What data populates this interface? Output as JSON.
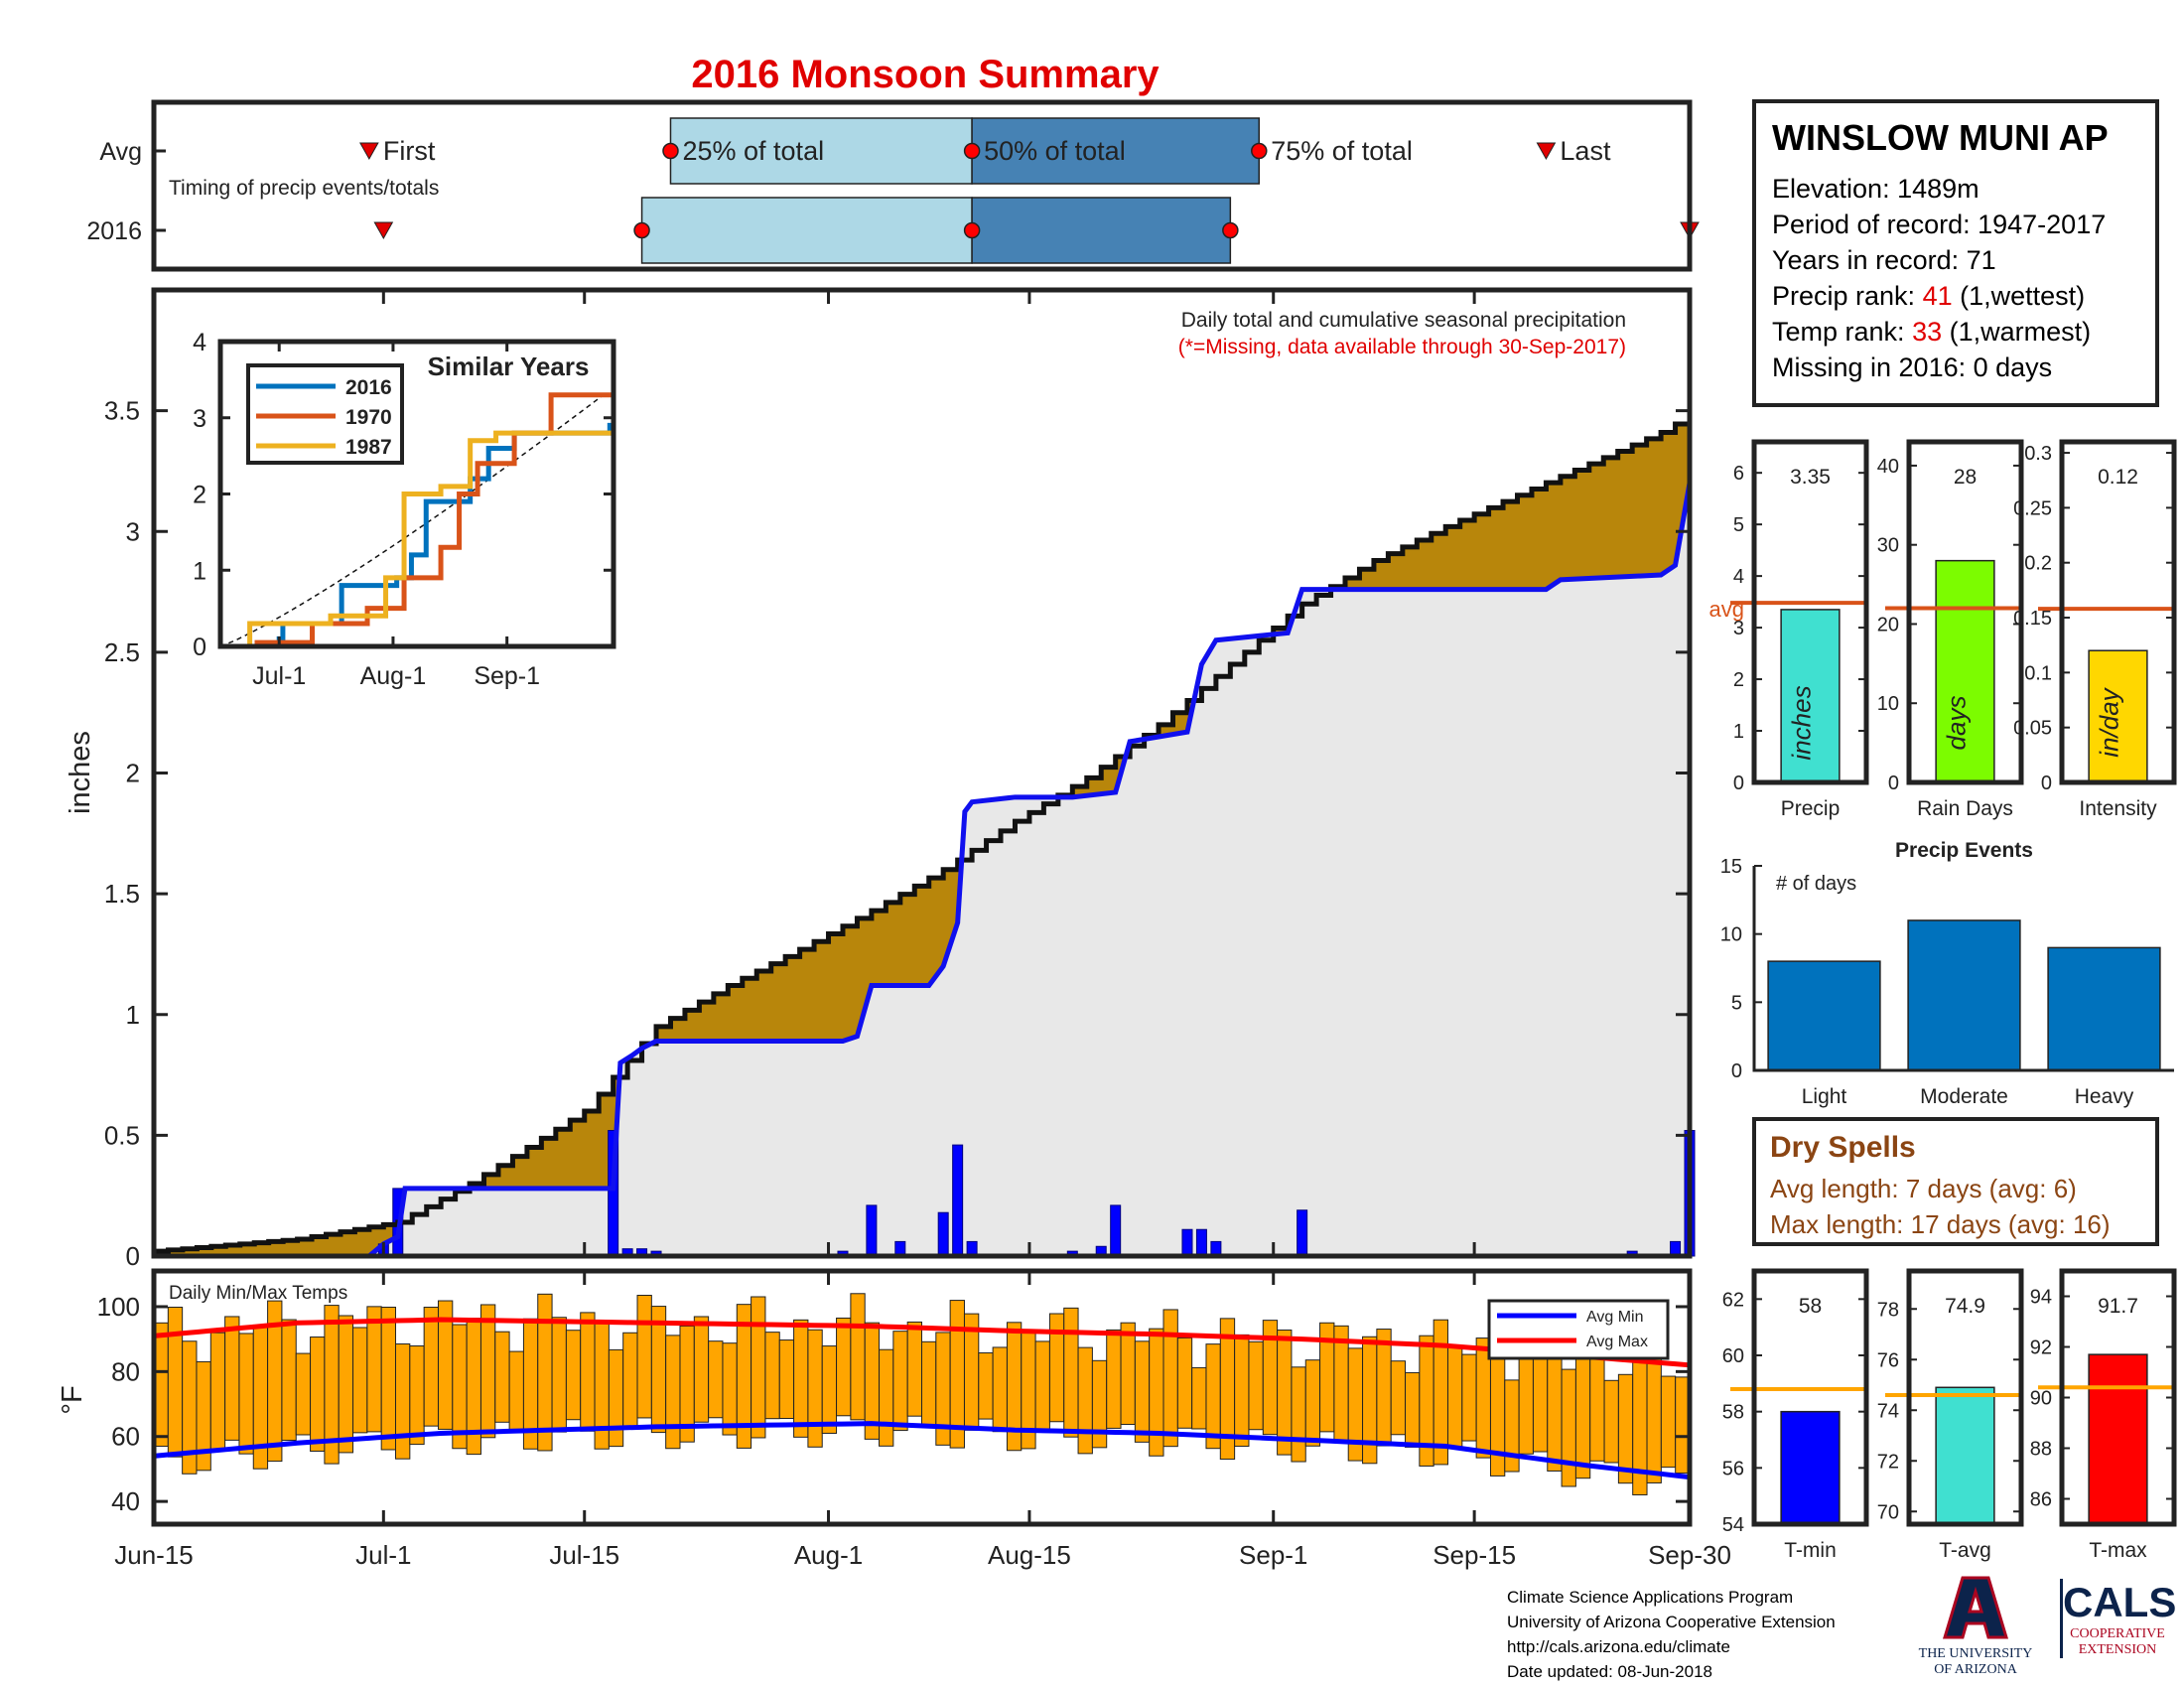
{
  "title": "2016 Monsoon Summary",
  "colors": {
    "title": "#e00000",
    "cumulative_fill": "#b8860b",
    "above_avg_fill": "#228b22",
    "avg_area": "#e8e8e8",
    "daily_bars": "#0000ff",
    "avg_line": "#1010ee",
    "temp_bars": "#ffa500",
    "avg_min_line": "#0000ff",
    "avg_max_line": "#ff0000",
    "light_box": "#add8e6",
    "dark_box": "#4682b4"
  },
  "station": {
    "name": "WINSLOW MUNI AP",
    "elevation_label": "Elevation: 1489m",
    "period_label": "Period of record: 1947-2017",
    "years_label": "Years in record: 71",
    "precip_rank_prefix": "Precip rank: ",
    "precip_rank_value": "41",
    "precip_rank_suffix": " (1,wettest)",
    "temp_rank_prefix": "Temp rank: ",
    "temp_rank_value": "33",
    "temp_rank_suffix": " (1,warmest)",
    "missing_label": "Missing in 2016: 0 days"
  },
  "timing": {
    "row_labels": [
      "Avg",
      "2016"
    ],
    "caption": "Timing of precip events/totals",
    "markers": [
      "First",
      "25% of total",
      "50% of total",
      "75% of total",
      "Last"
    ]
  },
  "dry_spells": {
    "title": "Dry Spells",
    "avg_line": "Avg length: 7 days (avg: 6)",
    "max_line": "Max length: 17 days (avg: 16)"
  },
  "footer": {
    "lines": [
      "Climate Science Applications Program",
      "University of Arizona Cooperative Extension",
      "http://cals.arizona.edu/climate",
      " Date updated: 08-Jun-2018"
    ],
    "ua_lines": [
      "THE UNIVERSITY",
      "OF ARIZONA"
    ],
    "cals_title": "CALS",
    "cals_lines": [
      "COOPERATIVE",
      "EXTENSION"
    ]
  },
  "chart_data": [
    {
      "id": "timing",
      "type": "bar",
      "x_range_days": [
        0,
        107
      ],
      "avg": {
        "first": 15,
        "p25": 36,
        "p50": 57,
        "p75": 77,
        "last": 97
      },
      "year_2016": {
        "first": 16,
        "p25": 34,
        "p50": 57,
        "p75": 75,
        "last": 107
      }
    },
    {
      "id": "main_precip",
      "type": "area",
      "ylabel": "inches",
      "annotation": "Daily total and cumulative seasonal precipitation",
      "annotation_missing": "(*=Missing, data available through 30-Sep-2017)",
      "ylim": [
        0,
        4
      ],
      "yticks": [
        0,
        0.5,
        1,
        1.5,
        2,
        2.5,
        3,
        3.5
      ],
      "x_dates": [
        "Jun-15",
        "Jul-1",
        "Jul-15",
        "Aug-1",
        "Aug-15",
        "Sep-1",
        "Sep-15",
        "Sep-30"
      ],
      "x_days": [
        0,
        16,
        30,
        47,
        61,
        78,
        92,
        107
      ],
      "avg_cumulative": [
        [
          0,
          0.02
        ],
        [
          10,
          0.07
        ],
        [
          17,
          0.14
        ],
        [
          22,
          0.3
        ],
        [
          30,
          0.6
        ],
        [
          35,
          0.95
        ],
        [
          40,
          1.12
        ],
        [
          45,
          1.27
        ],
        [
          50,
          1.43
        ],
        [
          55,
          1.6
        ],
        [
          60,
          1.8
        ],
        [
          65,
          1.98
        ],
        [
          70,
          2.2
        ],
        [
          75,
          2.45
        ],
        [
          80,
          2.7
        ],
        [
          85,
          2.88
        ],
        [
          90,
          3.02
        ],
        [
          95,
          3.15
        ],
        [
          100,
          3.28
        ],
        [
          105,
          3.41
        ],
        [
          107,
          3.48
        ]
      ],
      "year_2016_cumulative": [
        [
          0,
          0
        ],
        [
          15,
          0
        ],
        [
          16,
          0.05
        ],
        [
          17,
          0.08
        ],
        [
          17.5,
          0.28
        ],
        [
          24,
          0.28
        ],
        [
          32,
          0.28
        ],
        [
          32.5,
          0.8
        ],
        [
          33.3,
          0.83
        ],
        [
          34,
          0.86
        ],
        [
          35,
          0.89
        ],
        [
          48,
          0.89
        ],
        [
          49,
          0.91
        ],
        [
          50,
          1.12
        ],
        [
          54,
          1.12
        ],
        [
          55,
          1.2
        ],
        [
          56,
          1.38
        ],
        [
          56.5,
          1.84
        ],
        [
          57,
          1.88
        ],
        [
          60,
          1.9
        ],
        [
          64,
          1.9
        ],
        [
          67,
          1.92
        ],
        [
          68,
          2.13
        ],
        [
          72,
          2.17
        ],
        [
          73,
          2.45
        ],
        [
          74,
          2.55
        ],
        [
          79,
          2.58
        ],
        [
          80,
          2.76
        ],
        [
          97,
          2.76
        ],
        [
          98,
          2.8
        ],
        [
          105,
          2.82
        ],
        [
          106,
          2.86
        ],
        [
          107,
          3.2
        ],
        [
          107,
          3.35
        ]
      ],
      "daily": [
        [
          16,
          0.05
        ],
        [
          17,
          0.28
        ],
        [
          32,
          0.52
        ],
        [
          33,
          0.03
        ],
        [
          34,
          0.03
        ],
        [
          35,
          0.02
        ],
        [
          48,
          0.02
        ],
        [
          50,
          0.21
        ],
        [
          52,
          0.06
        ],
        [
          55,
          0.18
        ],
        [
          56,
          0.46
        ],
        [
          57,
          0.06
        ],
        [
          64,
          0.02
        ],
        [
          66,
          0.04
        ],
        [
          67,
          0.21
        ],
        [
          72,
          0.11
        ],
        [
          73,
          0.11
        ],
        [
          74,
          0.06
        ],
        [
          80,
          0.19
        ],
        [
          103,
          0.02
        ],
        [
          106,
          0.06
        ],
        [
          107,
          0.52
        ]
      ]
    },
    {
      "id": "similar_years",
      "type": "line",
      "title": "Similar Years",
      "ylim": [
        0,
        4
      ],
      "yticks": [
        0,
        1,
        2,
        3,
        4
      ],
      "x_ticks": [
        "Jul-1",
        "Aug-1",
        "Sep-1"
      ],
      "series": [
        {
          "name": "2016",
          "color": "#0072bd",
          "points": [
            [
              0,
              0
            ],
            [
              16,
              0.1
            ],
            [
              17,
              0.3
            ],
            [
              30,
              0.3
            ],
            [
              33,
              0.8
            ],
            [
              48,
              0.9
            ],
            [
              52,
              1.2
            ],
            [
              56,
              1.9
            ],
            [
              68,
              2.2
            ],
            [
              73,
              2.6
            ],
            [
              80,
              2.8
            ],
            [
              106,
              2.9
            ],
            [
              107,
              3.35
            ]
          ]
        },
        {
          "name": "1970",
          "color": "#d95319",
          "points": [
            [
              0,
              0
            ],
            [
              10,
              0.05
            ],
            [
              25,
              0.3
            ],
            [
              40,
              0.5
            ],
            [
              50,
              0.9
            ],
            [
              60,
              1.3
            ],
            [
              65,
              2.0
            ],
            [
              70,
              2.4
            ],
            [
              80,
              2.8
            ],
            [
              90,
              3.3
            ],
            [
              107,
              3.3
            ]
          ]
        },
        {
          "name": "1987",
          "color": "#edb120",
          "points": [
            [
              0,
              0
            ],
            [
              8,
              0.3
            ],
            [
              30,
              0.4
            ],
            [
              45,
              0.9
            ],
            [
              50,
              2.0
            ],
            [
              60,
              2.1
            ],
            [
              68,
              2.7
            ],
            [
              75,
              2.8
            ],
            [
              90,
              2.8
            ],
            [
              107,
              2.9
            ]
          ]
        }
      ]
    },
    {
      "id": "temps",
      "type": "bar",
      "annotation": "Daily Min/Max Temps",
      "ylabel": "°F",
      "ylim": [
        33,
        111
      ],
      "yticks": [
        40,
        60,
        80,
        100
      ],
      "legend": [
        "Avg Min",
        "Avg Max"
      ],
      "avg_max": [
        [
          0,
          91
        ],
        [
          10,
          95
        ],
        [
          20,
          96
        ],
        [
          35,
          95
        ],
        [
          50,
          94
        ],
        [
          60,
          92.5
        ],
        [
          70,
          91.5
        ],
        [
          80,
          90
        ],
        [
          90,
          88
        ],
        [
          100,
          84.5
        ],
        [
          107,
          82
        ]
      ],
      "avg_min": [
        [
          0,
          54
        ],
        [
          10,
          58
        ],
        [
          20,
          61
        ],
        [
          35,
          63
        ],
        [
          50,
          64
        ],
        [
          60,
          62
        ],
        [
          70,
          61
        ],
        [
          80,
          59
        ],
        [
          90,
          57
        ],
        [
          95,
          54
        ],
        [
          100,
          51
        ],
        [
          107,
          47.5
        ]
      ]
    },
    {
      "id": "precip_stats",
      "type": "bar",
      "panels": [
        {
          "label": "Precip",
          "unit": "inches",
          "value": 3.35,
          "value_label": "3.35",
          "avg": 3.48,
          "avg_label": "avg",
          "ylim": [
            0,
            6.6
          ],
          "yticks": [
            0,
            1,
            2,
            3,
            4,
            5,
            6
          ],
          "color": "#40e0d0"
        },
        {
          "label": "Rain Days",
          "unit": "days",
          "value": 28,
          "value_label": "28",
          "avg": 22,
          "ylim": [
            0,
            43
          ],
          "yticks": [
            0,
            10,
            20,
            30,
            40
          ],
          "color": "#7cfc00"
        },
        {
          "label": "Intensity",
          "unit": "in/day",
          "value": 0.12,
          "value_label": "0.12",
          "avg": 0.158,
          "ylim": [
            0,
            0.31
          ],
          "yticks": [
            0,
            0.05,
            0.1,
            0.15,
            0.2,
            0.25,
            0.3
          ],
          "ytick_labels": [
            "0",
            "0.05",
            "0.1",
            "0.15",
            "0.2",
            "0.25",
            "0.3"
          ],
          "color": "#ffd700"
        }
      ],
      "avg_color": "#d95319"
    },
    {
      "id": "precip_events",
      "type": "bar",
      "title": "Precip Events",
      "annotation": "# of days",
      "categories": [
        "Light",
        "Moderate",
        "Heavy"
      ],
      "values": [
        8,
        11,
        9
      ],
      "ylim": [
        0,
        15
      ],
      "yticks": [
        0,
        5,
        10,
        15
      ],
      "color": "#0072bd"
    },
    {
      "id": "temp_stats",
      "type": "bar",
      "panels": [
        {
          "label": "T-min",
          "value": 58,
          "value_label": "58",
          "avg": 58.8,
          "ylim": [
            54,
            63
          ],
          "yticks": [
            54,
            56,
            58,
            60,
            62
          ],
          "color": "#0000ff"
        },
        {
          "label": "T-avg",
          "value": 74.9,
          "value_label": "74.9",
          "avg": 74.6,
          "ylim": [
            69.5,
            79.5
          ],
          "yticks": [
            70,
            72,
            74,
            76,
            78
          ],
          "color": "#40e0d0"
        },
        {
          "label": "T-max",
          "value": 91.7,
          "value_label": "91.7",
          "avg": 90.4,
          "ylim": [
            85,
            95
          ],
          "yticks": [
            86,
            88,
            90,
            92,
            94
          ],
          "color": "#ff0000"
        }
      ],
      "avg_color": "#ffa500"
    }
  ]
}
